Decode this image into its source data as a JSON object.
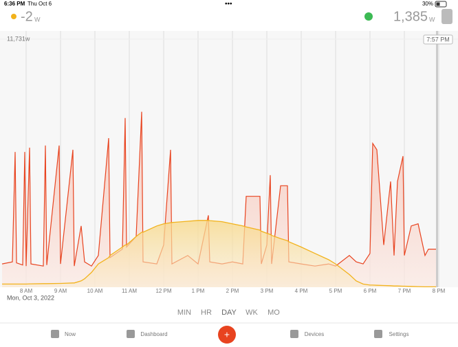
{
  "status_bar": {
    "time": "6:36 PM",
    "date": "Thu Oct 6",
    "battery": "30%"
  },
  "header": {
    "solar_value": "-2",
    "solar_unit": "W",
    "usage_value": "1,385",
    "usage_unit": "W"
  },
  "chart_data": {
    "type": "line",
    "x": [
      7.3,
      7.6,
      7.68,
      7.72,
      7.9,
      7.96,
      8.0,
      8.1,
      8.14,
      8.5,
      8.56,
      8.6,
      8.96,
      9.0,
      9.36,
      9.4,
      9.6,
      9.7,
      9.9,
      10.1,
      10.4,
      10.44,
      10.8,
      10.88,
      10.92,
      11.2,
      11.36,
      11.4,
      11.8,
      12.0,
      12.2,
      12.24,
      12.7,
      13.0,
      13.3,
      13.34,
      13.7,
      14.0,
      14.3,
      14.4,
      14.8,
      14.84,
      15.0,
      15.1,
      15.14,
      15.4,
      15.6,
      15.64,
      16.0,
      16.4,
      16.8,
      17.0,
      17.4,
      17.6,
      17.8,
      18.0,
      18.08,
      18.2,
      18.4,
      18.6,
      18.7,
      18.8,
      18.96,
      19.0,
      19.2,
      19.4,
      19.6,
      19.7,
      19.95
    ],
    "series": [
      {
        "name": "Usage",
        "color": "#e8431f",
        "values": [
          1100,
          1200,
          6400,
          1150,
          1050,
          6400,
          1000,
          6600,
          1100,
          1000,
          6700,
          1050,
          6700,
          1100,
          6500,
          1000,
          2900,
          1200,
          1000,
          1500,
          7050,
          1400,
          1800,
          8000,
          1900,
          2400,
          8300,
          1200,
          1100,
          2000,
          6500,
          1100,
          1500,
          1100,
          3400,
          1200,
          1100,
          1200,
          1100,
          4300,
          4300,
          1100,
          2000,
          5300,
          1100,
          4800,
          4800,
          1200,
          1100,
          1000,
          1100,
          1000,
          1500,
          1200,
          1100,
          1600,
          6800,
          6500,
          2000,
          5000,
          1500,
          5000,
          6200,
          1500,
          2900,
          3000,
          1500,
          1800,
          1800
        ]
      },
      {
        "name": "Solar",
        "color": "#f2b21b",
        "values": [
          150,
          150,
          150,
          150,
          150,
          150,
          150,
          160,
          160,
          170,
          170,
          170,
          180,
          180,
          200,
          200,
          300,
          400,
          700,
          1100,
          1400,
          1500,
          1900,
          2000,
          2000,
          2400,
          2600,
          2600,
          2900,
          3000,
          3050,
          3060,
          3120,
          3160,
          3160,
          3150,
          3100,
          3000,
          2900,
          2850,
          2700,
          2650,
          2550,
          2500,
          2450,
          2300,
          2200,
          2150,
          1900,
          1600,
          1300,
          1100,
          600,
          300,
          150,
          100,
          100,
          90,
          80,
          70,
          60,
          60,
          50,
          50,
          40,
          30,
          20,
          20,
          20
        ]
      }
    ],
    "xlim": [
      7.24,
      20.56
    ],
    "xticks": [
      {
        "value": 8,
        "label": "8 AM"
      },
      {
        "value": 9,
        "label": "9 AM"
      },
      {
        "value": 10,
        "label": "10 AM"
      },
      {
        "value": 11,
        "label": "11 AM"
      },
      {
        "value": 12,
        "label": "12 PM"
      },
      {
        "value": 13,
        "label": "1 PM"
      },
      {
        "value": 14,
        "label": "2 PM"
      },
      {
        "value": 15,
        "label": "3 PM"
      },
      {
        "value": 16,
        "label": "4 PM"
      },
      {
        "value": 17,
        "label": "5 PM"
      },
      {
        "value": 18,
        "label": "6 PM"
      },
      {
        "value": 19,
        "label": "7 PM"
      },
      {
        "value": 20,
        "label": "8 PM"
      }
    ],
    "ylim": [
      0,
      11731
    ],
    "yticks": [
      {
        "value": 11731,
        "label": "11,731w"
      }
    ],
    "grid": true,
    "date_label": "Mon, Oct 3, 2022",
    "cursor_label": "7:57 PM"
  },
  "range_buttons": [
    "MIN",
    "HR",
    "DAY",
    "WK",
    "MO"
  ],
  "tabs": [
    "Now",
    "Dashboard",
    "Devices",
    "Settings"
  ]
}
